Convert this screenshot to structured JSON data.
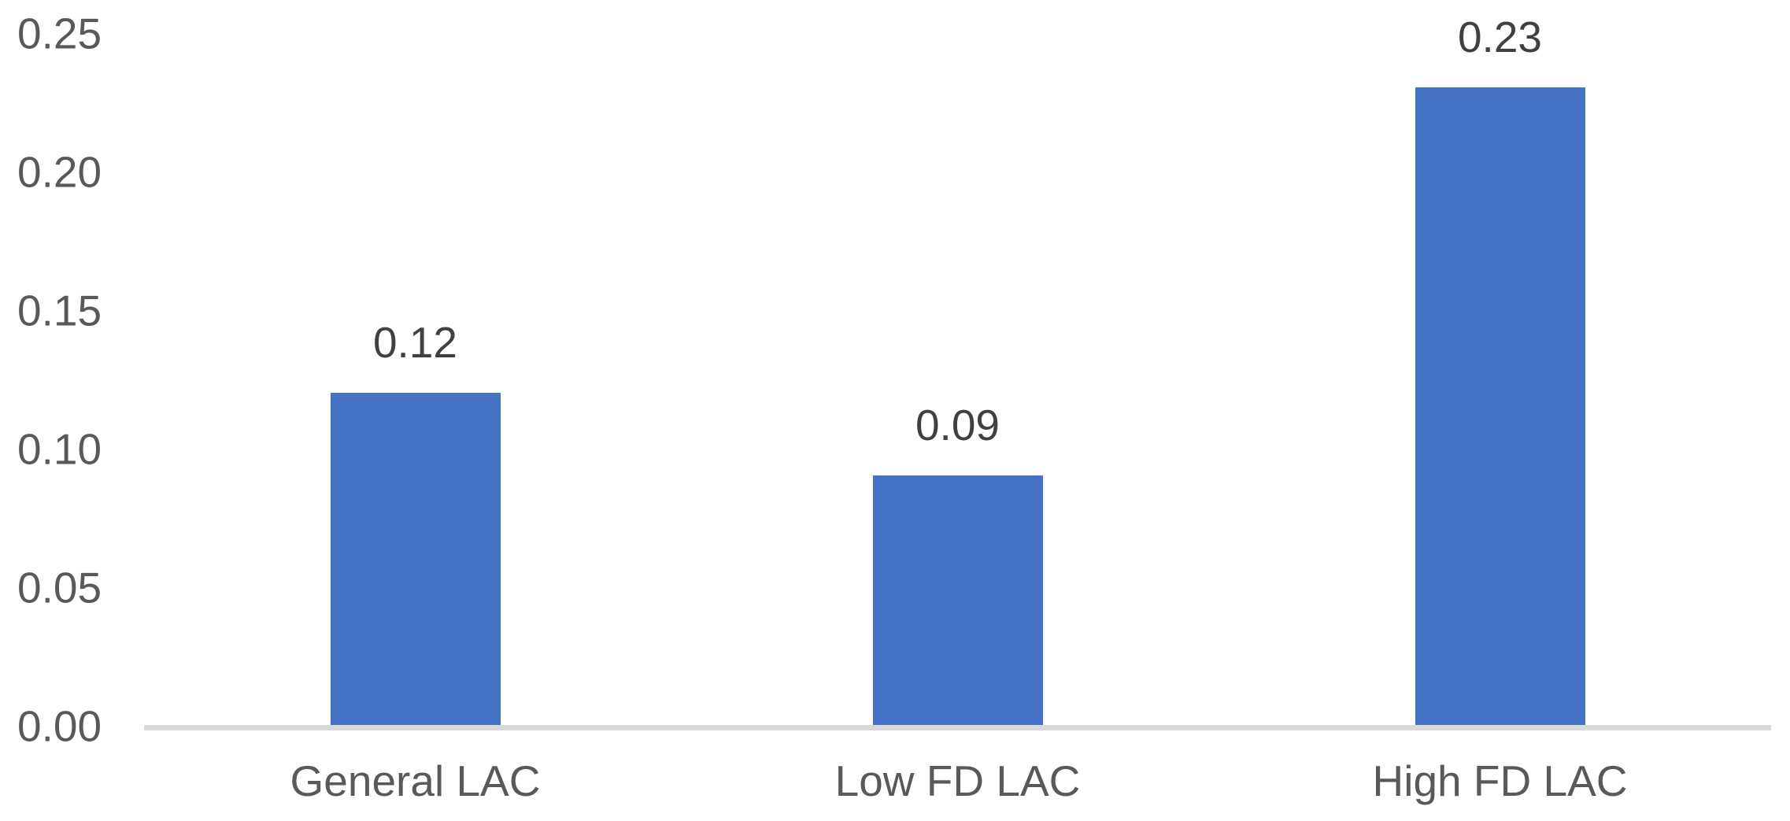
{
  "chart_data": {
    "type": "bar",
    "title": "",
    "xlabel": "",
    "ylabel": "",
    "categories": [
      "General LAC",
      "Low FD LAC",
      "High FD LAC"
    ],
    "values": [
      0.12,
      0.09,
      0.23
    ],
    "data_labels": [
      "0.12",
      "0.09",
      "0.23"
    ],
    "yticks": [
      "0.25",
      "0.20",
      "0.15",
      "0.10",
      "0.05",
      "0.00"
    ],
    "ylim": [
      0,
      0.25
    ],
    "ytick_step": 0.05,
    "grid": false,
    "legend": false,
    "bar_color": "#4472C4",
    "axis_line_color": "#D9D9D9",
    "tick_label_color": "#595959",
    "data_label_color": "#404040",
    "category_label_color": "#595959",
    "background_color": "#FFFFFF"
  }
}
